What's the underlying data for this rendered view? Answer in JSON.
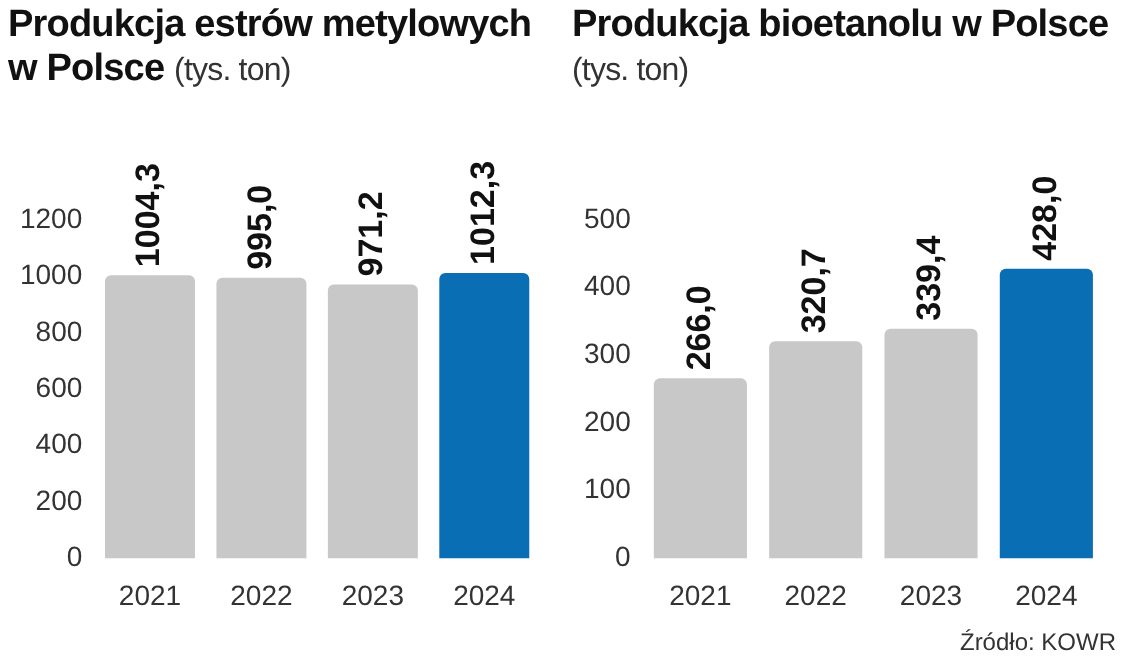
{
  "chart_data": [
    {
      "type": "bar",
      "title": "Produkcja estrów metylowych w Polsce",
      "subtitle": "(tys. ton)",
      "categories": [
        "2021",
        "2022",
        "2023",
        "2024"
      ],
      "values": [
        1004.3,
        995.0,
        971.2,
        1012.3
      ],
      "value_labels": [
        "1004,3",
        "995,0",
        "971,2",
        "1012,3"
      ],
      "colors": [
        "#c8c8c8",
        "#c8c8c8",
        "#c8c8c8",
        "#0a6eb4"
      ],
      "ylim": [
        0,
        1200
      ],
      "yticks": [
        0,
        200,
        400,
        600,
        800,
        1000,
        1200
      ],
      "grid": false,
      "legend": false
    },
    {
      "type": "bar",
      "title": "Produkcja bioetanolu w Polsce",
      "subtitle": "(tys. ton)",
      "categories": [
        "2021",
        "2022",
        "2023",
        "2024"
      ],
      "values": [
        266.0,
        320.7,
        339.4,
        428.0
      ],
      "value_labels": [
        "266,0",
        "320,7",
        "339,4",
        "428,0"
      ],
      "colors": [
        "#c8c8c8",
        "#c8c8c8",
        "#c8c8c8",
        "#0a6eb4"
      ],
      "ylim": [
        0,
        500
      ],
      "yticks": [
        0,
        100,
        200,
        300,
        400,
        500
      ],
      "grid": false,
      "legend": false,
      "annotations": [
        "Źródło: KOWR"
      ]
    }
  ]
}
